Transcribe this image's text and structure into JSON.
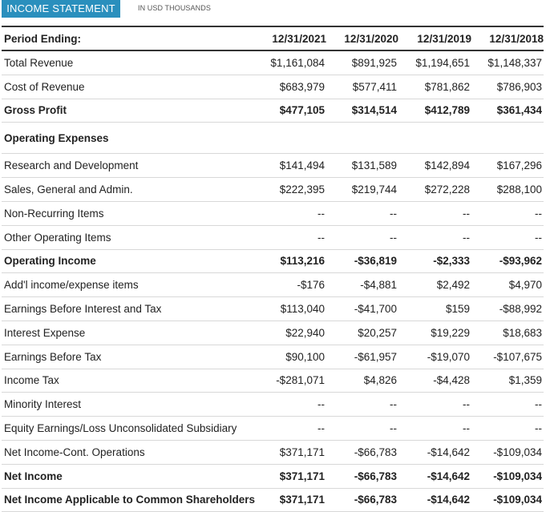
{
  "header": {
    "tab_label": "INCOME STATEMENT",
    "units_label": "IN USD THOUSANDS"
  },
  "table": {
    "columns": [
      "Period Ending:",
      "12/31/2021",
      "12/31/2020",
      "12/31/2019",
      "12/31/2018"
    ],
    "rows": [
      {
        "label": "Total Revenue",
        "values": [
          "$1,161,084",
          "$891,925",
          "$1,194,651",
          "$1,148,337"
        ],
        "bold": false
      },
      {
        "label": "Cost of Revenue",
        "values": [
          "$683,979",
          "$577,411",
          "$781,862",
          "$786,903"
        ],
        "bold": false
      },
      {
        "label": "Gross Profit",
        "values": [
          "$477,105",
          "$314,514",
          "$412,789",
          "$361,434"
        ],
        "bold": true
      },
      {
        "label": "Operating Expenses",
        "values": [
          "",
          "",
          "",
          ""
        ],
        "bold": true,
        "section": true
      },
      {
        "label": "Research and Development",
        "values": [
          "$141,494",
          "$131,589",
          "$142,894",
          "$167,296"
        ],
        "bold": false
      },
      {
        "label": "Sales, General and Admin.",
        "values": [
          "$222,395",
          "$219,744",
          "$272,228",
          "$288,100"
        ],
        "bold": false
      },
      {
        "label": "Non-Recurring Items",
        "values": [
          "--",
          "--",
          "--",
          "--"
        ],
        "bold": false
      },
      {
        "label": "Other Operating Items",
        "values": [
          "--",
          "--",
          "--",
          "--"
        ],
        "bold": false
      },
      {
        "label": "Operating Income",
        "values": [
          "$113,216",
          "-$36,819",
          "-$2,333",
          "-$93,962"
        ],
        "bold": true
      },
      {
        "label": "Add'l income/expense items",
        "values": [
          "-$176",
          "-$4,881",
          "$2,492",
          "$4,970"
        ],
        "bold": false
      },
      {
        "label": "Earnings Before Interest and Tax",
        "values": [
          "$113,040",
          "-$41,700",
          "$159",
          "-$88,992"
        ],
        "bold": false
      },
      {
        "label": "Interest Expense",
        "values": [
          "$22,940",
          "$20,257",
          "$19,229",
          "$18,683"
        ],
        "bold": false
      },
      {
        "label": "Earnings Before Tax",
        "values": [
          "$90,100",
          "-$61,957",
          "-$19,070",
          "-$107,675"
        ],
        "bold": false
      },
      {
        "label": "Income Tax",
        "values": [
          "-$281,071",
          "$4,826",
          "-$4,428",
          "$1,359"
        ],
        "bold": false
      },
      {
        "label": "Minority Interest",
        "values": [
          "--",
          "--",
          "--",
          "--"
        ],
        "bold": false
      },
      {
        "label": "Equity Earnings/Loss Unconsolidated Subsidiary",
        "values": [
          "--",
          "--",
          "--",
          "--"
        ],
        "bold": false
      },
      {
        "label": "Net Income-Cont. Operations",
        "values": [
          "$371,171",
          "-$66,783",
          "-$14,642",
          "-$109,034"
        ],
        "bold": false
      },
      {
        "label": "Net Income",
        "values": [
          "$371,171",
          "-$66,783",
          "-$14,642",
          "-$109,034"
        ],
        "bold": true
      },
      {
        "label": "Net Income Applicable to Common Shareholders",
        "values": [
          "$371,171",
          "-$66,783",
          "-$14,642",
          "-$109,034"
        ],
        "bold": true
      }
    ]
  },
  "colors": {
    "tab_background": "#2a8fbd",
    "tab_text": "#ffffff",
    "rule": "#333333",
    "row_divider": "#d8d8d8"
  }
}
